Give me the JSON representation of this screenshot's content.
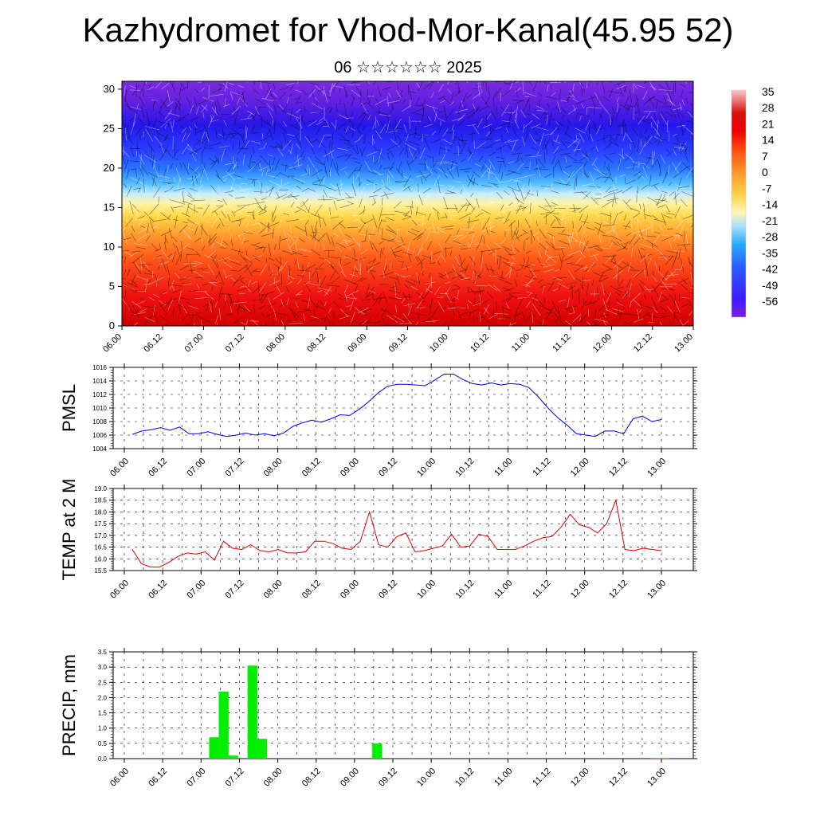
{
  "page": {
    "title": "Kazhydromet for Vhod-Mor-Kanal(45.95 52)",
    "subtitle": "06 ☆☆☆☆☆☆ 2025"
  },
  "colors": {
    "pmsl_line": "#0000dd",
    "temp_line": "#dd0000",
    "precip_bar": "#00ee00",
    "grid": "#000000",
    "colormap": [
      "#7a1fe0",
      "#3b1cff",
      "#2a5cff",
      "#29a9ff",
      "#7fd3ff",
      "#cfeeff",
      "#fff2a6",
      "#ffd24a",
      "#ffa22e",
      "#ff6a1e",
      "#ff2b14",
      "#ee0000",
      "#dd1010",
      "#f08080",
      "#f7c0c0"
    ]
  },
  "chart_data": [
    {
      "id": "cross_section",
      "type": "heatmap",
      "title": "",
      "xlabel": "",
      "ylabel": "",
      "ylim": [
        0,
        31
      ],
      "yticks": [
        0,
        5,
        10,
        15,
        20,
        25,
        30
      ],
      "xticks": [
        "06.00",
        "06.12",
        "07.00",
        "07.12",
        "08.00",
        "08.12",
        "09.00",
        "09.12",
        "10.00",
        "10.12",
        "11.00",
        "11.12",
        "12.00",
        "12.12",
        "13.00"
      ],
      "colorbar": {
        "labels": [
          "35",
          "28",
          "21",
          "14",
          "7",
          "0",
          "-7",
          "-14",
          "-21",
          "-28",
          "-35",
          "-42",
          "-49",
          "-56"
        ]
      },
      "wind_vectors": true
    },
    {
      "id": "pmsl",
      "type": "line",
      "ylabel": "PMSL",
      "ylim": [
        1004,
        1016
      ],
      "yticks": [
        "1004",
        "1006",
        "1008",
        "1010",
        "1012",
        "1014",
        "1016"
      ],
      "xticks": [
        "06.00",
        "06.12",
        "07.00",
        "07.12",
        "08.00",
        "08.12",
        "09.00",
        "09.12",
        "10.00",
        "10.12",
        "11.00",
        "11.12",
        "12.00",
        "12.12",
        "13.00"
      ],
      "grid": true,
      "series": [
        {
          "values": [
            1006.1,
            1006.6,
            1006.8,
            1007.1,
            1006.7,
            1007.2,
            1006.2,
            1006.2,
            1006.5,
            1006.1,
            1005.8,
            1006.0,
            1006.3,
            1006.0,
            1006.2,
            1005.9,
            1006.3,
            1007.3,
            1007.8,
            1008.2,
            1007.9,
            1008.4,
            1009.0,
            1008.9,
            1009.8,
            1010.9,
            1012.2,
            1013.2,
            1013.5,
            1013.5,
            1013.4,
            1013.3,
            1014.1,
            1015.0,
            1015.0,
            1014.2,
            1013.6,
            1013.4,
            1013.7,
            1013.4,
            1013.6,
            1013.5,
            1013.0,
            1011.6,
            1010.0,
            1008.6,
            1007.5,
            1006.2,
            1006.0,
            1005.8,
            1006.6,
            1006.6,
            1006.2,
            1008.4,
            1008.8,
            1008.0,
            1008.3
          ]
        }
      ]
    },
    {
      "id": "temp2m",
      "type": "line",
      "ylabel": "TEMP at 2 M",
      "ylim": [
        15.5,
        19.0
      ],
      "yticks": [
        "15.5",
        "16.0",
        "16.5",
        "17.0",
        "17.5",
        "18.0",
        "18.5",
        "19.0"
      ],
      "xticks": [
        "06.00",
        "06.12",
        "07.00",
        "07.12",
        "08.00",
        "08.12",
        "09.00",
        "09.12",
        "10.00",
        "10.12",
        "11.00",
        "11.12",
        "12.00",
        "12.12",
        "13.00"
      ],
      "grid": true,
      "series": [
        {
          "values": [
            16.4,
            15.8,
            15.65,
            15.65,
            15.85,
            16.1,
            16.25,
            16.2,
            16.3,
            15.95,
            16.75,
            16.45,
            16.4,
            16.6,
            16.35,
            16.3,
            16.4,
            16.25,
            16.25,
            16.3,
            16.75,
            16.75,
            16.65,
            16.45,
            16.4,
            16.75,
            18.0,
            16.6,
            16.5,
            16.95,
            17.1,
            16.3,
            16.35,
            16.45,
            16.55,
            17.05,
            16.5,
            16.55,
            17.05,
            16.95,
            16.4,
            16.4,
            16.4,
            16.55,
            16.75,
            16.9,
            16.95,
            17.35,
            17.9,
            17.45,
            17.35,
            17.1,
            17.5,
            18.5,
            16.4,
            16.35,
            16.45,
            16.4,
            16.35
          ]
        }
      ]
    },
    {
      "id": "precip",
      "type": "bar",
      "ylabel": "PRECIP, mm",
      "ylim": [
        0,
        3.5
      ],
      "yticks": [
        "0.0",
        "0.5",
        "1.0",
        "1.5",
        "2.0",
        "2.5",
        "3.0",
        "3.5"
      ],
      "xticks": [
        "06.00",
        "06.12",
        "07.00",
        "07.12",
        "08.00",
        "08.12",
        "09.00",
        "09.12",
        "10.00",
        "10.12",
        "11.00",
        "11.12",
        "12.00",
        "12.12",
        "13.00"
      ],
      "grid": true,
      "series": [
        {
          "values": [
            0,
            0,
            0,
            0,
            0,
            0,
            0,
            0,
            0,
            0.7,
            2.2,
            0.1,
            0,
            3.05,
            0.65,
            0,
            0,
            0,
            0,
            0,
            0,
            0,
            0,
            0,
            0,
            0,
            0.5,
            0,
            0,
            0,
            0,
            0,
            0,
            0,
            0,
            0,
            0,
            0,
            0,
            0,
            0,
            0,
            0,
            0,
            0,
            0,
            0,
            0,
            0,
            0,
            0,
            0,
            0,
            0,
            0,
            0.02,
            0.02
          ]
        }
      ]
    }
  ]
}
